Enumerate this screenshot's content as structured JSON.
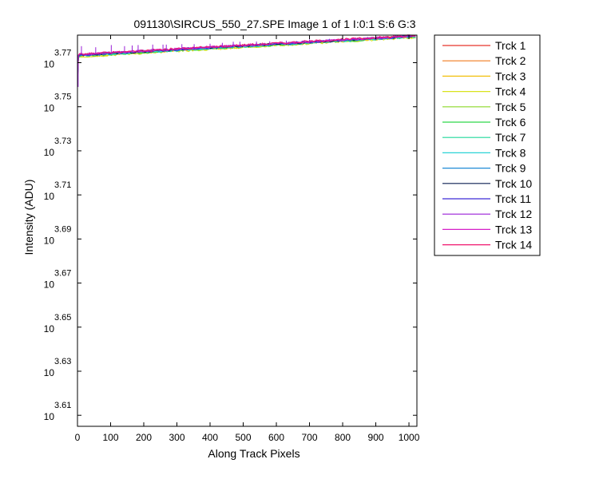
{
  "chart_data": {
    "type": "line",
    "title": "091130\\SIRCUS_550_27.SPE  Image 1 of 1  I:0:1  S:6  G:3",
    "xlabel": "Along Track Pixels",
    "ylabel": "Intensity (ADU)",
    "xlim": [
      0,
      1024
    ],
    "ylim_log10": [
      3.605,
      3.7825
    ],
    "log_y": true,
    "x_ticks": [
      0,
      100,
      200,
      300,
      400,
      500,
      600,
      700,
      800,
      900,
      1000
    ],
    "x_tick_labels": [
      "0",
      "100",
      "200",
      "300",
      "400",
      "500",
      "600",
      "700",
      "800",
      "900",
      "1000"
    ],
    "y_ticks_log10": [
      3.61,
      3.63,
      3.65,
      3.67,
      3.69,
      3.71,
      3.73,
      3.75,
      3.77
    ],
    "y_tick_base": "10",
    "y_tick_exponents": [
      "3.61",
      "3.63",
      "3.65",
      "3.67",
      "3.69",
      "3.71",
      "3.73",
      "3.75",
      "3.77"
    ],
    "grid": false,
    "legend_position": "outside-right",
    "series": [
      {
        "name": "Trck 1",
        "color": "#e8352b",
        "x": [
          0,
          1024
        ],
        "log10_y": [
          3.7735,
          3.7822
        ]
      },
      {
        "name": "Trck 2",
        "color": "#f07a1f",
        "x": [
          0,
          1024
        ],
        "log10_y": [
          3.7733,
          3.782
        ]
      },
      {
        "name": "Trck 3",
        "color": "#f2c00c",
        "x": [
          0,
          1024
        ],
        "log10_y": [
          3.7728,
          3.7816
        ]
      },
      {
        "name": "Trck 4",
        "color": "#d9e21c",
        "x": [
          0,
          1024
        ],
        "log10_y": [
          3.7727,
          3.7815
        ]
      },
      {
        "name": "Trck 5",
        "color": "#8bd928",
        "x": [
          0,
          1024
        ],
        "log10_y": [
          3.7729,
          3.7817
        ]
      },
      {
        "name": "Trck 6",
        "color": "#2fd64a",
        "x": [
          0,
          1024
        ],
        "log10_y": [
          3.773,
          3.7818
        ]
      },
      {
        "name": "Trck 7",
        "color": "#1fd89a",
        "x": [
          0,
          1024
        ],
        "log10_y": [
          3.7731,
          3.7819
        ]
      },
      {
        "name": "Trck 8",
        "color": "#2ad3d6",
        "x": [
          0,
          1024
        ],
        "log10_y": [
          3.7732,
          3.7819
        ]
      },
      {
        "name": "Trck 9",
        "color": "#1f8ad6",
        "x": [
          0,
          1024
        ],
        "log10_y": [
          3.7733,
          3.782
        ]
      },
      {
        "name": "Trck 10",
        "color": "#0a1f52",
        "x": [
          0,
          1024
        ],
        "log10_y": [
          3.7734,
          3.7821
        ]
      },
      {
        "name": "Trck 11",
        "color": "#3d2bd8",
        "x": [
          0,
          1024
        ],
        "log10_y": [
          3.7735,
          3.7821
        ]
      },
      {
        "name": "Trck 12",
        "color": "#9a1fd8",
        "x": [
          0,
          1024
        ],
        "log10_y": [
          3.7736,
          3.7822
        ]
      },
      {
        "name": "Trck 13",
        "color": "#d61fc8",
        "x": [
          0,
          1024
        ],
        "log10_y": [
          3.7737,
          3.7823
        ]
      },
      {
        "name": "Trck 14",
        "color": "#f0166e",
        "x": [
          0,
          1024
        ],
        "log10_y": [
          3.7738,
          3.7824
        ]
      }
    ],
    "spikes": [
      {
        "x": 2,
        "log10_y": 3.759
      },
      {
        "x": 12,
        "log10_y": 3.7775
      },
      {
        "x": 55,
        "log10_y": 3.777
      },
      {
        "x": 102,
        "log10_y": 3.778
      },
      {
        "x": 142,
        "log10_y": 3.7775
      },
      {
        "x": 165,
        "log10_y": 3.7778
      },
      {
        "x": 183,
        "log10_y": 3.778
      },
      {
        "x": 227,
        "log10_y": 3.7782
      },
      {
        "x": 258,
        "log10_y": 3.7782
      },
      {
        "x": 268,
        "log10_y": 3.7782
      },
      {
        "x": 315,
        "log10_y": 3.7784
      },
      {
        "x": 352,
        "log10_y": 3.7784
      },
      {
        "x": 400,
        "log10_y": 3.7786
      },
      {
        "x": 437,
        "log10_y": 3.779
      },
      {
        "x": 470,
        "log10_y": 3.7795
      },
      {
        "x": 490,
        "log10_y": 3.7795
      },
      {
        "x": 540,
        "log10_y": 3.7796
      },
      {
        "x": 580,
        "log10_y": 3.7797
      },
      {
        "x": 630,
        "log10_y": 3.78
      },
      {
        "x": 700,
        "log10_y": 3.7805
      },
      {
        "x": 760,
        "log10_y": 3.7808
      },
      {
        "x": 840,
        "log10_y": 3.7812
      },
      {
        "x": 900,
        "log10_y": 3.7818
      },
      {
        "x": 960,
        "log10_y": 3.7822
      }
    ]
  }
}
